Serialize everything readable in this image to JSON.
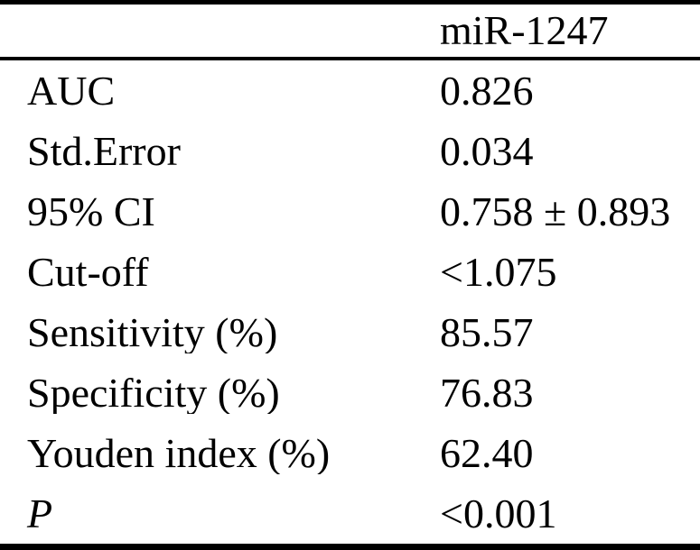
{
  "table": {
    "header": {
      "label": "",
      "value": "miR-1247"
    },
    "rows": [
      {
        "label": "AUC",
        "value": "0.826",
        "label_italic": false
      },
      {
        "label": "Std.Error",
        "value": "0.034",
        "label_italic": false
      },
      {
        "label": "95% CI",
        "value": "0.758 ± 0.893",
        "label_italic": false
      },
      {
        "label": "Cut-off",
        "value": "<1.075",
        "label_italic": false
      },
      {
        "label": "Sensitivity (%)",
        "value": "85.57",
        "label_italic": false
      },
      {
        "label": "Specificity (%)",
        "value": "76.83",
        "label_italic": false
      },
      {
        "label": "Youden index (%)",
        "value": "62.40",
        "label_italic": false
      },
      {
        "label": "P",
        "value": "<0.001",
        "label_italic": true
      }
    ]
  },
  "colors": {
    "background": "#ffffff",
    "text": "#000000",
    "rule": "#000000"
  }
}
